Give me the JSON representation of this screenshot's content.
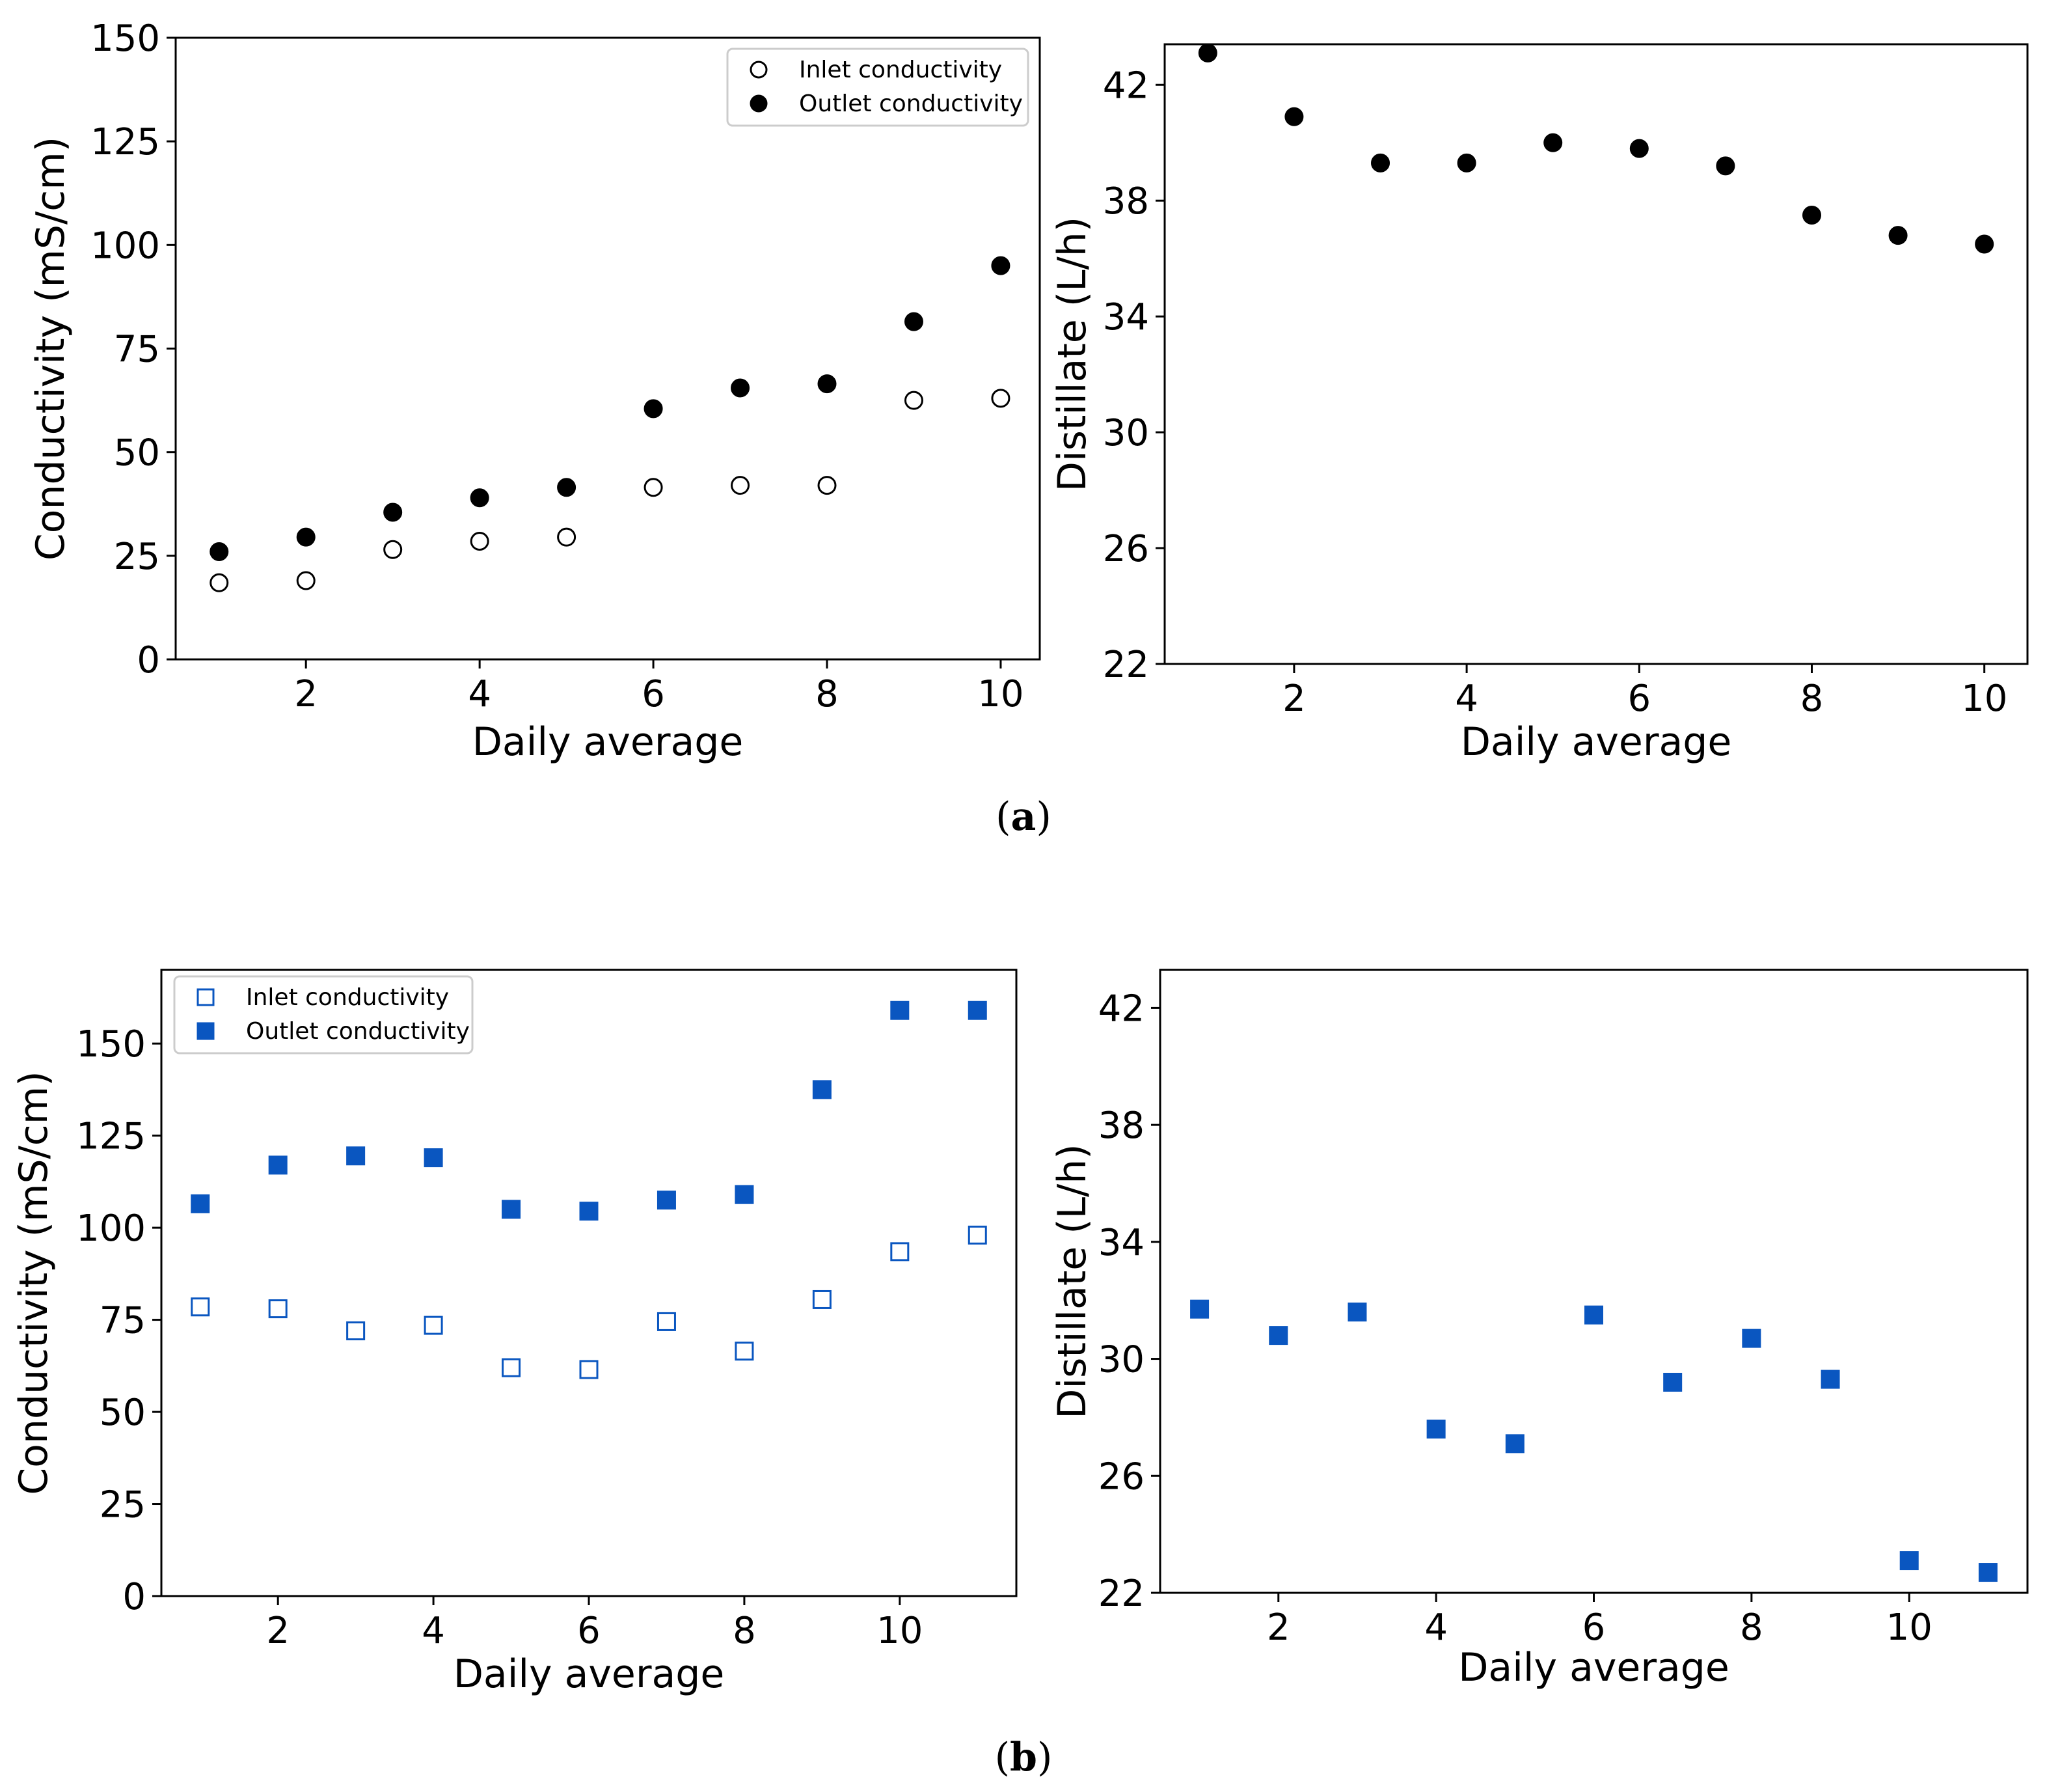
{
  "colors": {
    "black": "#000000",
    "blue": "#0a56c0"
  },
  "panel_labels": {
    "a": "a",
    "b": "b"
  },
  "chart_data": [
    {
      "id": "a-left",
      "type": "scatter",
      "title": "",
      "xlabel": "Daily average",
      "ylabel": "Conductivity (mS/cm)",
      "xlim": [
        0.5,
        10.45
      ],
      "ylim": [
        0,
        150
      ],
      "xticks": [
        2,
        4,
        6,
        8,
        10
      ],
      "yticks": [
        0,
        25,
        50,
        75,
        100,
        125,
        150
      ],
      "legend": {
        "position": "top-right"
      },
      "series": [
        {
          "name": "Inlet conductivity",
          "marker": "circle",
          "filled": false,
          "color": "#000000",
          "x": [
            1,
            2,
            3,
            4,
            5,
            6,
            7,
            8,
            9,
            10
          ],
          "y": [
            18.5,
            19,
            26.5,
            28.5,
            29.5,
            41.5,
            42,
            42,
            62.5,
            63
          ]
        },
        {
          "name": "Outlet conductivity",
          "marker": "circle",
          "filled": true,
          "color": "#000000",
          "x": [
            1,
            2,
            3,
            4,
            5,
            6,
            7,
            8,
            9,
            10
          ],
          "y": [
            26,
            29.5,
            35.5,
            39,
            41.5,
            60.5,
            65.5,
            66.5,
            81.5,
            95
          ]
        }
      ]
    },
    {
      "id": "a-right",
      "type": "scatter",
      "title": "",
      "xlabel": "Daily average",
      "ylabel": "Distillate (L/h)",
      "xlim": [
        0.5,
        10.5
      ],
      "ylim": [
        22,
        43.4
      ],
      "xticks": [
        2,
        4,
        6,
        8,
        10
      ],
      "yticks": [
        22,
        26,
        30,
        34,
        38,
        42
      ],
      "series": [
        {
          "name": "Distillate",
          "marker": "circle",
          "filled": true,
          "color": "#000000",
          "x": [
            1,
            2,
            3,
            4,
            5,
            6,
            7,
            8,
            9,
            10
          ],
          "y": [
            43.1,
            40.9,
            39.3,
            39.3,
            40.0,
            39.8,
            39.2,
            37.5,
            36.8,
            36.5
          ]
        }
      ]
    },
    {
      "id": "b-left",
      "type": "scatter",
      "title": "",
      "xlabel": "Daily average",
      "ylabel": "Conductivity (mS/cm)",
      "xlim": [
        0.5,
        11.5
      ],
      "ylim": [
        0,
        170
      ],
      "xticks": [
        2,
        4,
        6,
        8,
        10
      ],
      "yticks": [
        0,
        25,
        50,
        75,
        100,
        125,
        150
      ],
      "legend": {
        "position": "top-left"
      },
      "series": [
        {
          "name": "Inlet conductivity",
          "marker": "square",
          "filled": false,
          "color": "#0a56c0",
          "x": [
            1,
            2,
            3,
            4,
            5,
            6,
            7,
            8,
            9,
            10,
            11
          ],
          "y": [
            78.5,
            78,
            72,
            73.5,
            62,
            61.5,
            74.5,
            66.5,
            80.5,
            93.5,
            98
          ]
        },
        {
          "name": "Outlet conductivity",
          "marker": "square",
          "filled": true,
          "color": "#0a56c0",
          "x": [
            1,
            2,
            3,
            4,
            5,
            6,
            7,
            8,
            9,
            10,
            11
          ],
          "y": [
            106.5,
            117,
            119.5,
            119,
            105,
            104.5,
            107.5,
            109,
            137.5,
            159,
            159
          ]
        }
      ]
    },
    {
      "id": "b-right",
      "type": "scatter",
      "title": "",
      "xlabel": "Daily average",
      "ylabel": "Distillate (L/h)",
      "xlim": [
        0.5,
        11.5
      ],
      "ylim": [
        22,
        43.3
      ],
      "xticks": [
        2,
        4,
        6,
        8,
        10
      ],
      "yticks": [
        22,
        26,
        30,
        34,
        38,
        42
      ],
      "series": [
        {
          "name": "Distillate",
          "marker": "square",
          "filled": true,
          "color": "#0a56c0",
          "x": [
            1,
            2,
            3,
            4,
            5,
            6,
            7,
            8,
            9,
            10,
            11
          ],
          "y": [
            31.7,
            30.8,
            31.6,
            27.6,
            27.1,
            31.5,
            29.2,
            30.7,
            29.3,
            23.1,
            22.7
          ]
        }
      ]
    }
  ]
}
